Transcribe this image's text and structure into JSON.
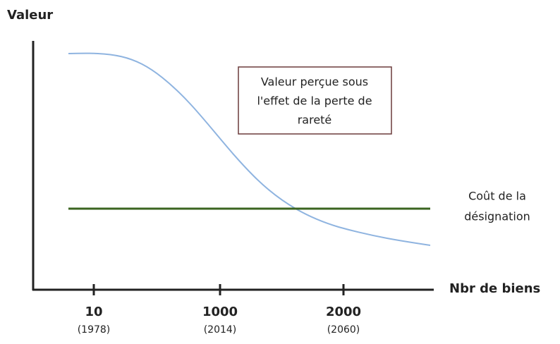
{
  "y_axis_label": "Valeur",
  "x_axis_label": "Nbr de biens",
  "x_ticks": [
    {
      "value": "10",
      "year": "(1978)"
    },
    {
      "value": "1000",
      "year": "(2014)"
    },
    {
      "value": "2000",
      "year": "(2060)"
    }
  ],
  "curve_box": [
    "Valeur perçue sous",
    "l'effet de la perte de",
    "rareté"
  ],
  "cost_label": [
    "Coût de la",
    "désignation"
  ]
}
